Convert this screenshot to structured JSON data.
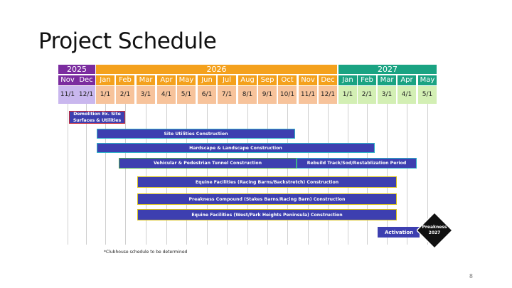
{
  "slide": {
    "title": "Project Schedule",
    "footnote": "*Clubhouse schedule to be determined",
    "page_number": "8"
  },
  "colors": {
    "y2025": "#7b2c9f",
    "y2026": "#f4a11d",
    "y2027": "#1aa382",
    "month_2025": "#7b2c9f",
    "month_2026": "#f4a11d",
    "month_2027": "#1aa382",
    "date_2025": "#c9b7ee",
    "date_2026": "#f7c39b",
    "date_2027": "#d3efb4",
    "bar": "#3d3fb0",
    "milestone": "#111111"
  },
  "years": [
    {
      "label": "2025",
      "span": 2,
      "color_key": "y2025"
    },
    {
      "label": "2026",
      "span": 12,
      "color_key": "y2026"
    },
    {
      "label": "2027",
      "span": 5,
      "color_key": "y2027"
    }
  ],
  "months": [
    {
      "label": "Nov",
      "date": "11/1",
      "year": "2025"
    },
    {
      "label": "Dec",
      "date": "12/1",
      "year": "2025"
    },
    {
      "label": "Jan",
      "date": "1/1",
      "year": "2026"
    },
    {
      "label": "Feb",
      "date": "2/1",
      "year": "2026"
    },
    {
      "label": "Mar",
      "date": "3/1",
      "year": "2026"
    },
    {
      "label": "Apr",
      "date": "4/1",
      "year": "2026"
    },
    {
      "label": "May",
      "date": "5/1",
      "year": "2026"
    },
    {
      "label": "Jun",
      "date": "6/1",
      "year": "2026"
    },
    {
      "label": "Jul",
      "date": "7/1",
      "year": "2026"
    },
    {
      "label": "Aug",
      "date": "8/1",
      "year": "2026"
    },
    {
      "label": "Sep",
      "date": "9/1",
      "year": "2026"
    },
    {
      "label": "Oct",
      "date": "10/1",
      "year": "2026"
    },
    {
      "label": "Nov",
      "date": "11/1",
      "year": "2026"
    },
    {
      "label": "Dec",
      "date": "12/1",
      "year": "2026"
    },
    {
      "label": "Jan",
      "date": "1/1",
      "year": "2027"
    },
    {
      "label": "Feb",
      "date": "2/1",
      "year": "2027"
    },
    {
      "label": "Mar",
      "date": "3/1",
      "year": "2027"
    },
    {
      "label": "Apr",
      "date": "4/1",
      "year": "2027"
    },
    {
      "label": "May",
      "date": "5/1",
      "year": "2027"
    }
  ],
  "tasks": [
    {
      "label": "Demolition Ex. Site Surfaces & Utilities",
      "start": "2025-11-15",
      "end": "2026-01-01",
      "border": "red"
    },
    {
      "label": "Site Utilities Construction",
      "start": "2026-01-01",
      "end": "2026-11-01",
      "border": "cyan"
    },
    {
      "label": "Hardscape & Landscape Construction",
      "start": "2026-01-01",
      "end": "2027-03-01",
      "border": "cyan"
    },
    {
      "label": "Vehicular & Pedestrian Tunnel Construction",
      "start": "2026-02-01",
      "end": "2026-11-01",
      "border": "green"
    },
    {
      "label": "Rebuild Track/Sod/Restablization Period",
      "start": "2026-11-01",
      "end": "2027-05-01",
      "border": "cyan"
    },
    {
      "label": "Equine Facilities (Racing Barns/Backstretch) Construction",
      "start": "2026-03-01",
      "end": "2027-04-01",
      "border": "yellow"
    },
    {
      "label": "Preakness Compound (Stakes Barns/Racing Barn) Construction",
      "start": "2026-03-01",
      "end": "2027-04-01",
      "border": "yellow"
    },
    {
      "label": "Equine Facilities (West/Park Heights Peninsula) Construction",
      "start": "2026-03-01",
      "end": "2027-04-01",
      "border": "yellow"
    },
    {
      "label": "Activation",
      "start": "2027-03-01",
      "end": "2027-05-01",
      "border": "none"
    }
  ],
  "milestone": {
    "line1": "Preakness",
    "line2": "2027",
    "date": "2027-05-15"
  }
}
